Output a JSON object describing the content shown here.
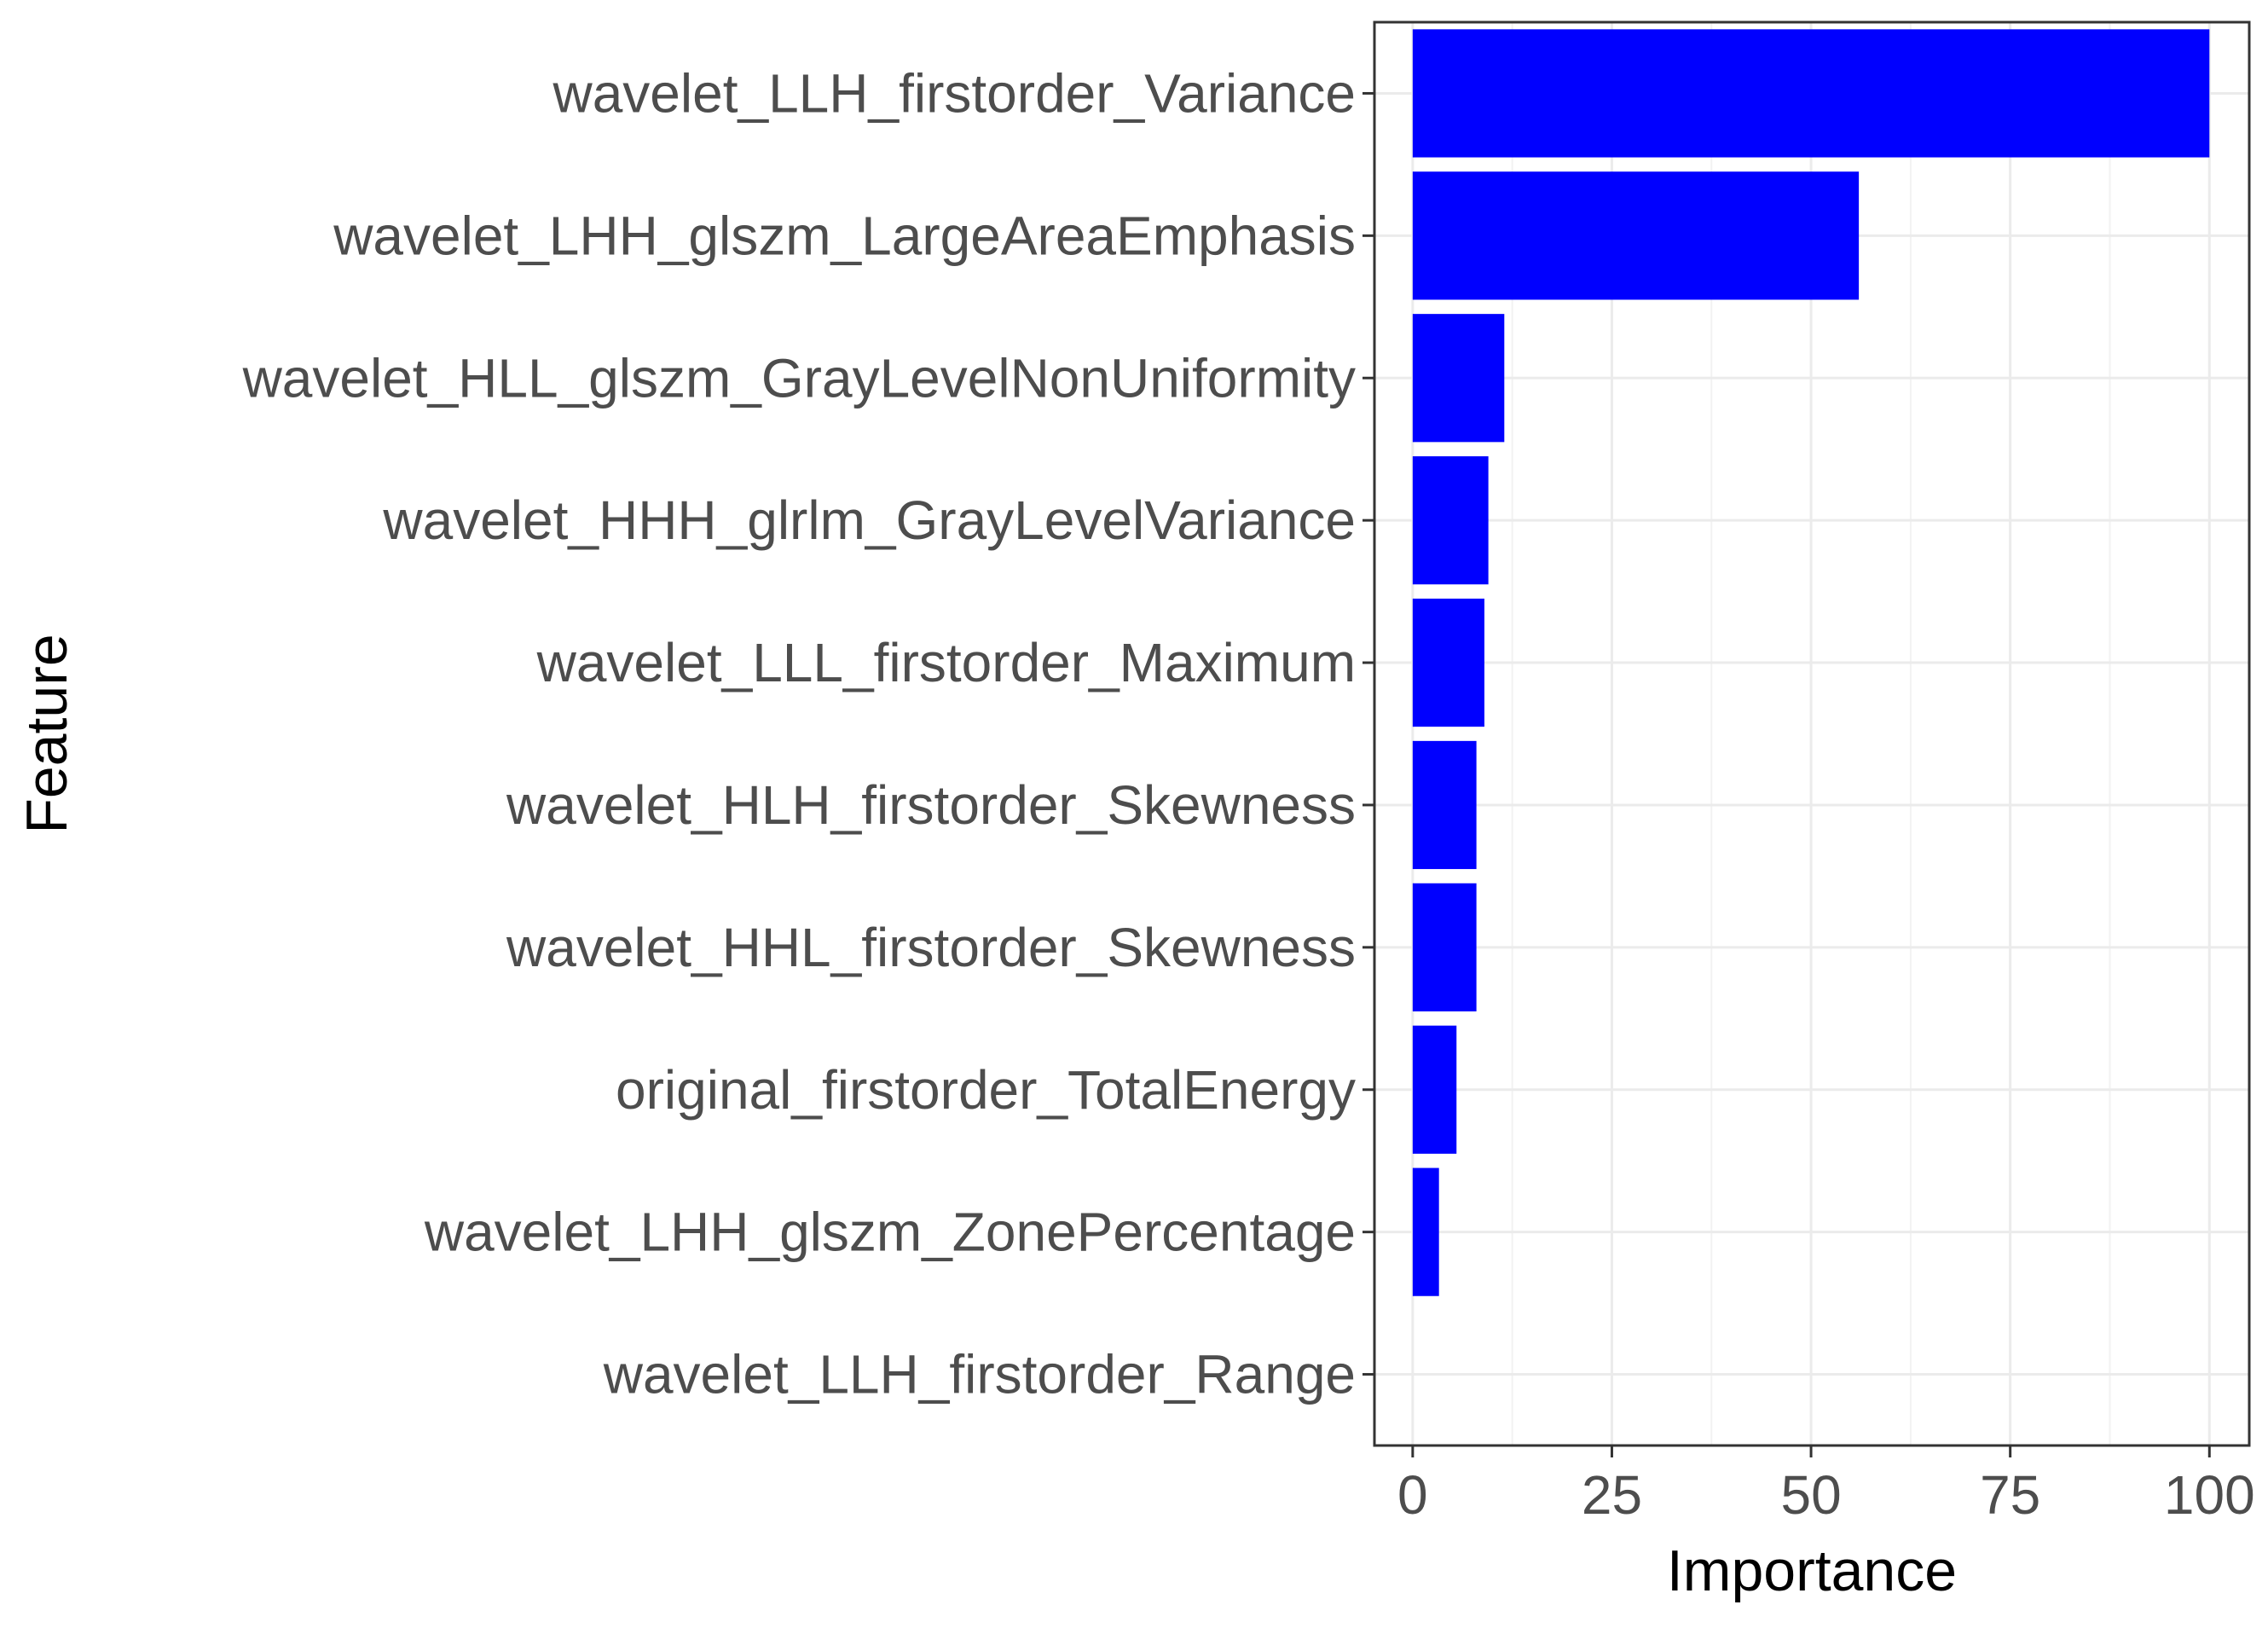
{
  "chart_data": {
    "type": "bar",
    "orientation": "horizontal",
    "title": "",
    "xlabel": "Importance",
    "ylabel": "Feature",
    "categories": [
      "wavelet_LLH_firstorder_Variance",
      "wavelet_LHH_glszm_LargeAreaEmphasis",
      "wavelet_HLL_glszm_GrayLevelNonUniformity",
      "wavelet_HHH_glrlm_GrayLevelVariance",
      "wavelet_LLL_firstorder_Maximum",
      "wavelet_HLH_firstorder_Skewness",
      "wavelet_HHL_firstorder_Skewness",
      "original_firstorder_TotalEnergy",
      "wavelet_LHH_glszm_ZonePercentage",
      "wavelet_LLH_firstorder_Range"
    ],
    "values": [
      100,
      56,
      11.5,
      9.5,
      9,
      8,
      8,
      5.5,
      3.3,
      0
    ],
    "xlim": [
      -4.8,
      105
    ],
    "xticks": [
      "0",
      "25",
      "50",
      "75",
      "100"
    ],
    "grid": true,
    "legend": "none",
    "bar_color": "#0000ff"
  }
}
